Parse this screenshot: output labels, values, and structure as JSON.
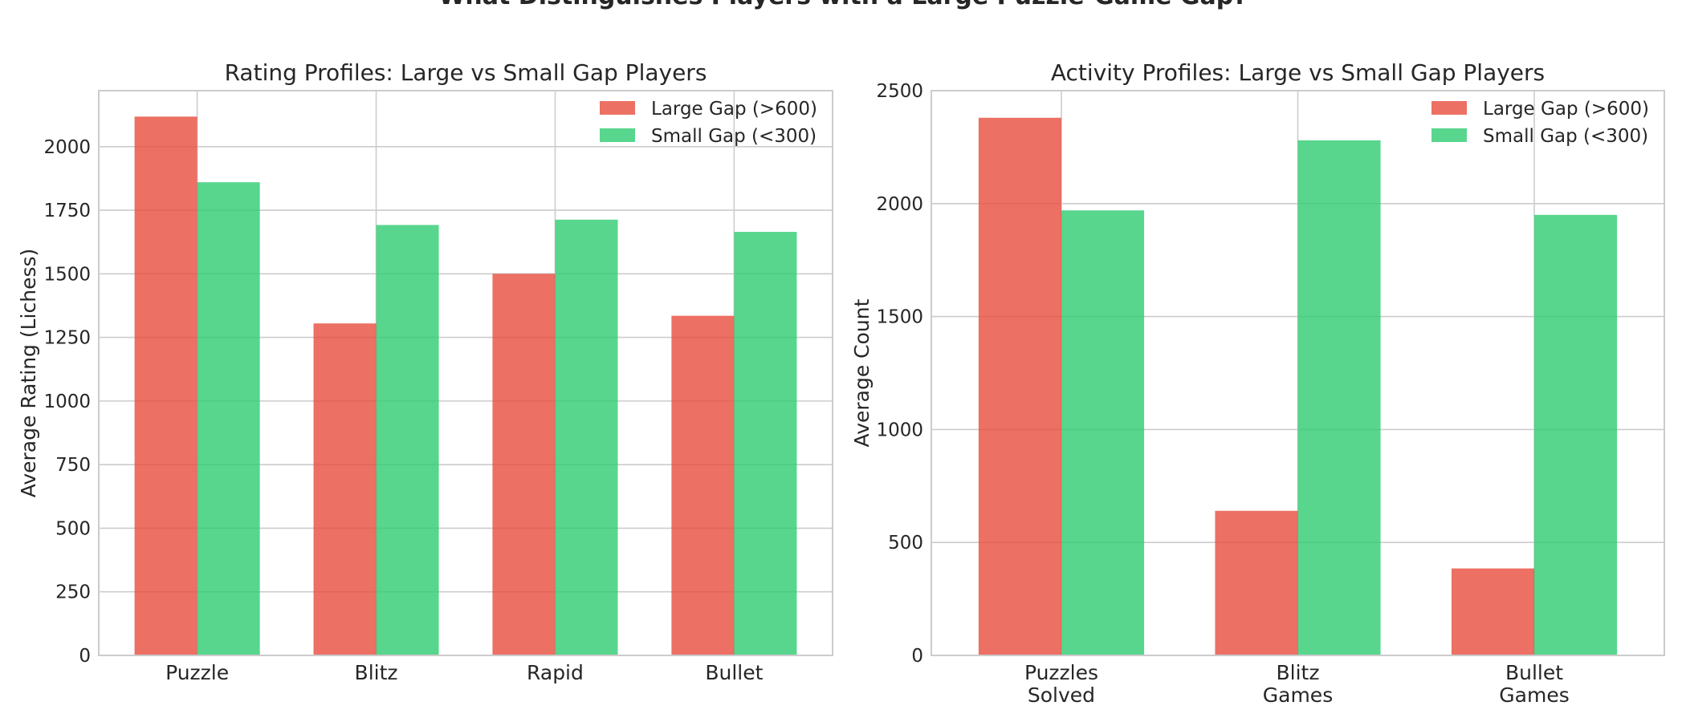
{
  "suptitle": "What Distinguishes Players with a Large Puzzle-Game Gap?",
  "colors": {
    "large": "#e74c3c",
    "small": "#2ecc71",
    "grid": "#cccccc",
    "frame": "#cccccc"
  },
  "chart_data": [
    {
      "type": "bar",
      "title": "Rating Profiles: Large vs Small Gap Players",
      "xlabel": "",
      "ylabel": "Average Rating (Lichess)",
      "categories": [
        "Puzzle",
        "Blitz",
        "Rapid",
        "Bullet"
      ],
      "series": [
        {
          "name": "Large Gap (>600)",
          "values": [
            2118,
            1305,
            1500,
            1335
          ]
        },
        {
          "name": "Small Gap (<300)",
          "values": [
            1860,
            1692,
            1713,
            1665
          ]
        }
      ],
      "ylim": [
        0,
        2220
      ],
      "yticks": [
        0,
        250,
        500,
        750,
        1000,
        1250,
        1500,
        1750,
        2000
      ],
      "grid": true,
      "legend": "upper right"
    },
    {
      "type": "bar",
      "title": "Activity Profiles: Large vs Small Gap Players",
      "xlabel": "",
      "ylabel": "Average Count",
      "categories": [
        "Puzzles\nSolved",
        "Blitz\nGames",
        "Bullet\nGames"
      ],
      "series": [
        {
          "name": "Large Gap (>600)",
          "values": [
            2380,
            640,
            385
          ]
        },
        {
          "name": "Small Gap (<300)",
          "values": [
            1970,
            2280,
            1950
          ]
        }
      ],
      "ylim": [
        0,
        2500
      ],
      "yticks": [
        0,
        500,
        1000,
        1500,
        2000,
        2500
      ],
      "grid": true,
      "legend": "upper right"
    }
  ]
}
